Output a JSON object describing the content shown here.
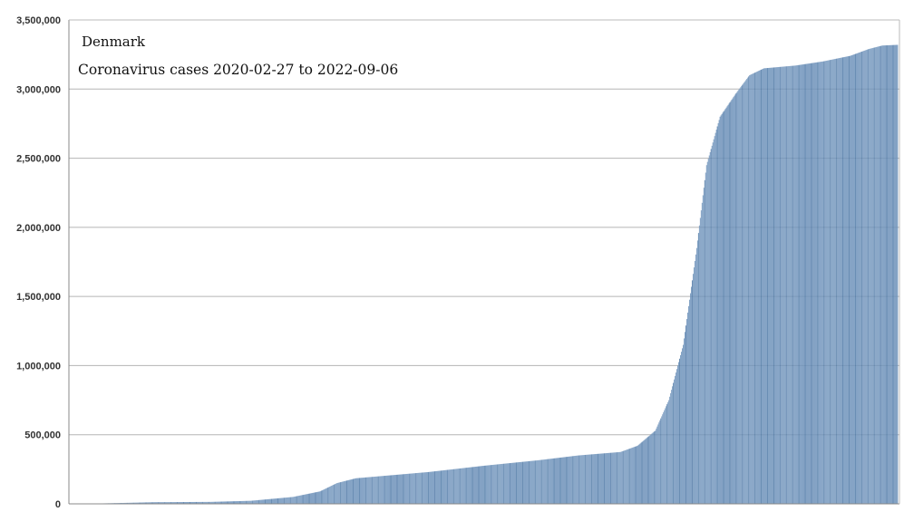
{
  "chart_data": {
    "type": "bar",
    "title": "Denmark",
    "subtitle": "Coronavirus cases 2020-02-27 to 2022-09-06",
    "xlabel": "",
    "ylabel": "",
    "x_range": [
      "2020-02-27",
      "2022-09-06"
    ],
    "ylim": [
      0,
      3500000
    ],
    "y_ticks": [
      0,
      500000,
      1000000,
      1500000,
      2000000,
      2500000,
      3000000,
      3500000
    ],
    "y_tick_labels": [
      "0",
      "500,000",
      "1,000,000",
      "1,500,000",
      "2,000,000",
      "2,500,000",
      "3,000,000",
      "3,500,000"
    ],
    "grid": true,
    "legend": "none",
    "bar_color": "#6f93bb",
    "points": [
      {
        "date": "2020-02-27",
        "value": 1
      },
      {
        "date": "2020-04-01",
        "value": 3000
      },
      {
        "date": "2020-06-01",
        "value": 12000
      },
      {
        "date": "2020-08-01",
        "value": 14000
      },
      {
        "date": "2020-09-15",
        "value": 22000
      },
      {
        "date": "2020-11-01",
        "value": 50000
      },
      {
        "date": "2020-12-01",
        "value": 90000
      },
      {
        "date": "2020-12-20",
        "value": 150000
      },
      {
        "date": "2021-01-10",
        "value": 185000
      },
      {
        "date": "2021-02-15",
        "value": 205000
      },
      {
        "date": "2021-04-01",
        "value": 230000
      },
      {
        "date": "2021-06-01",
        "value": 275000
      },
      {
        "date": "2021-08-01",
        "value": 315000
      },
      {
        "date": "2021-09-15",
        "value": 350000
      },
      {
        "date": "2021-11-01",
        "value": 375000
      },
      {
        "date": "2021-11-20",
        "value": 420000
      },
      {
        "date": "2021-12-10",
        "value": 530000
      },
      {
        "date": "2021-12-25",
        "value": 750000
      },
      {
        "date": "2022-01-10",
        "value": 1150000
      },
      {
        "date": "2022-01-25",
        "value": 1850000
      },
      {
        "date": "2022-02-05",
        "value": 2450000
      },
      {
        "date": "2022-02-20",
        "value": 2800000
      },
      {
        "date": "2022-03-10",
        "value": 2970000
      },
      {
        "date": "2022-03-25",
        "value": 3100000
      },
      {
        "date": "2022-04-10",
        "value": 3150000
      },
      {
        "date": "2022-05-15",
        "value": 3170000
      },
      {
        "date": "2022-06-15",
        "value": 3200000
      },
      {
        "date": "2022-07-15",
        "value": 3240000
      },
      {
        "date": "2022-08-05",
        "value": 3290000
      },
      {
        "date": "2022-08-20",
        "value": 3315000
      },
      {
        "date": "2022-09-06",
        "value": 3320000
      }
    ]
  }
}
